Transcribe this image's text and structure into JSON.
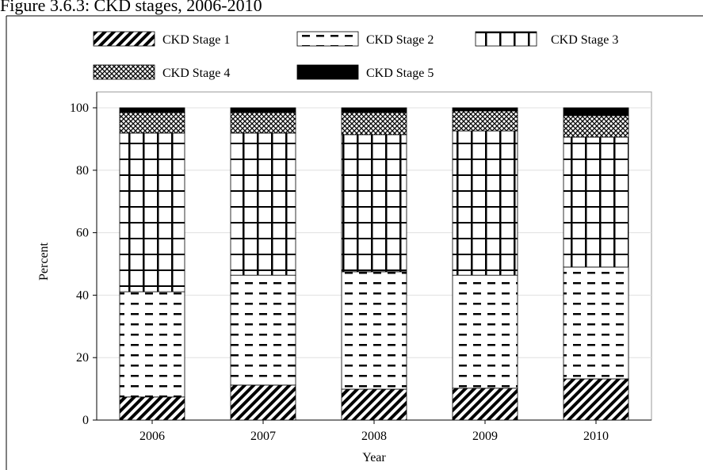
{
  "chart_data": {
    "type": "stacked-bar",
    "title": "Figure 3.6.3: CKD stages, 2006-2010",
    "x_label": "Year",
    "y_label": "Percent",
    "categories": [
      "2006",
      "2007",
      "2008",
      "2009",
      "2010"
    ],
    "series": [
      {
        "name": "CKD Stage 1",
        "color": "#000000",
        "pattern": "hatch",
        "values": [
          7.4,
          11.2,
          9.9,
          10.2,
          13.2
        ]
      },
      {
        "name": "CKD Stage 2",
        "color": "#000000",
        "pattern": "dash",
        "values": [
          33.7,
          35.2,
          37.6,
          36.2,
          35.8
        ]
      },
      {
        "name": "CKD Stage 3",
        "color": "#000000",
        "pattern": "grid",
        "values": [
          50.8,
          45.5,
          43.9,
          46.2,
          41.6
        ]
      },
      {
        "name": "CKD Stage 4",
        "color": "#000000",
        "pattern": "crosshatch",
        "values": [
          6.6,
          6.6,
          7.1,
          6.4,
          6.9
        ]
      },
      {
        "name": "CKD Stage 5",
        "color": "#000000",
        "pattern": "solid",
        "values": [
          1.5,
          1.5,
          1.5,
          1.0,
          2.5
        ]
      }
    ],
    "ylim": [
      0,
      100
    ],
    "yticks": [
      0,
      20,
      40,
      60,
      80,
      100
    ],
    "grid": true
  }
}
